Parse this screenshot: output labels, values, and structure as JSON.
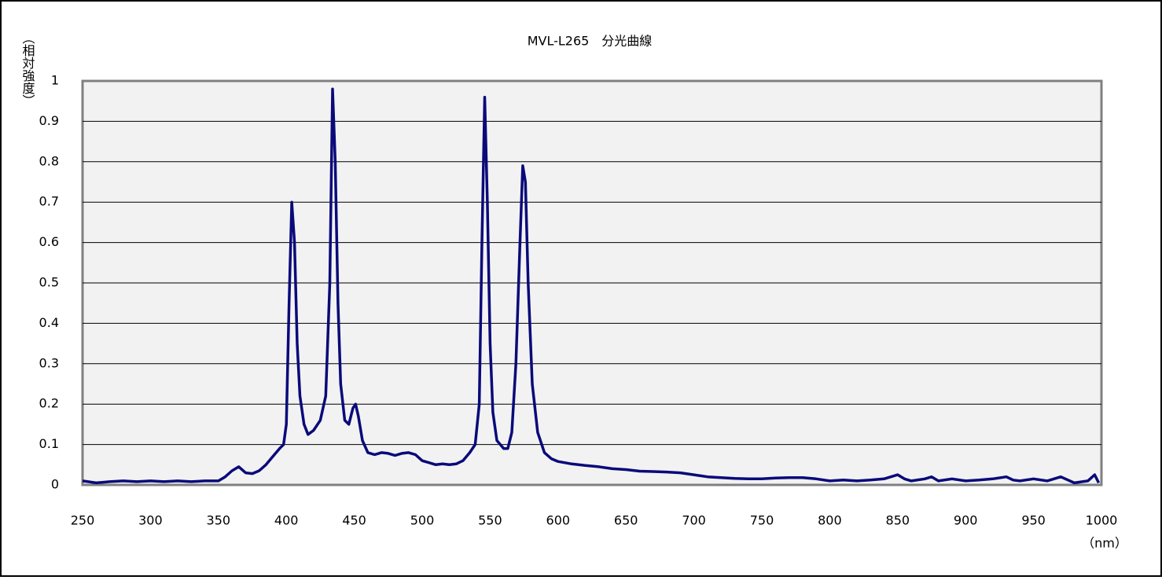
{
  "chart_data": {
    "type": "line",
    "title": "MVL-L265　分光曲線",
    "y_label": "（相対強度）",
    "x_label": "（nm）",
    "color": "#0a0a7a",
    "grid": true,
    "xlim": [
      250,
      1000
    ],
    "xticks": [
      250,
      300,
      350,
      400,
      450,
      500,
      550,
      600,
      650,
      700,
      750,
      800,
      850,
      900,
      950,
      1000
    ],
    "ylim": [
      0,
      1
    ],
    "yticks": [
      0,
      0.1,
      0.2,
      0.3,
      0.4,
      0.5,
      0.6,
      0.7,
      0.8,
      0.9,
      1
    ],
    "x": [
      250,
      260,
      270,
      280,
      290,
      300,
      310,
      320,
      330,
      340,
      350,
      355,
      360,
      365,
      370,
      375,
      380,
      385,
      390,
      395,
      398,
      400,
      402,
      404,
      406,
      408,
      410,
      413,
      416,
      420,
      425,
      429,
      432,
      434,
      436,
      438,
      440,
      443,
      446,
      449,
      451,
      453,
      456,
      460,
      465,
      470,
      475,
      480,
      485,
      490,
      495,
      500,
      505,
      510,
      515,
      520,
      525,
      530,
      535,
      539,
      542,
      544,
      546,
      548,
      550,
      552,
      555,
      560,
      563,
      566,
      569,
      572,
      574,
      576,
      578,
      581,
      585,
      590,
      595,
      600,
      610,
      620,
      630,
      640,
      650,
      660,
      670,
      680,
      690,
      700,
      710,
      720,
      730,
      740,
      750,
      760,
      770,
      780,
      790,
      800,
      810,
      820,
      830,
      840,
      850,
      855,
      860,
      870,
      875,
      880,
      890,
      900,
      910,
      920,
      930,
      935,
      940,
      950,
      960,
      970,
      980,
      990,
      995,
      998
    ],
    "values": [
      0.01,
      0.005,
      0.008,
      0.01,
      0.008,
      0.01,
      0.008,
      0.01,
      0.008,
      0.01,
      0.01,
      0.02,
      0.035,
      0.045,
      0.03,
      0.028,
      0.035,
      0.05,
      0.07,
      0.09,
      0.1,
      0.15,
      0.45,
      0.7,
      0.6,
      0.35,
      0.22,
      0.15,
      0.125,
      0.135,
      0.16,
      0.22,
      0.5,
      0.98,
      0.8,
      0.45,
      0.25,
      0.16,
      0.15,
      0.19,
      0.2,
      0.17,
      0.11,
      0.08,
      0.075,
      0.08,
      0.078,
      0.073,
      0.078,
      0.08,
      0.075,
      0.06,
      0.055,
      0.05,
      0.052,
      0.05,
      0.052,
      0.06,
      0.08,
      0.1,
      0.2,
      0.6,
      0.96,
      0.7,
      0.35,
      0.18,
      0.11,
      0.09,
      0.09,
      0.13,
      0.3,
      0.6,
      0.79,
      0.75,
      0.5,
      0.25,
      0.13,
      0.08,
      0.065,
      0.058,
      0.052,
      0.048,
      0.045,
      0.04,
      0.038,
      0.034,
      0.033,
      0.032,
      0.03,
      0.025,
      0.02,
      0.018,
      0.016,
      0.015,
      0.015,
      0.017,
      0.018,
      0.018,
      0.015,
      0.01,
      0.012,
      0.01,
      0.012,
      0.015,
      0.025,
      0.015,
      0.01,
      0.015,
      0.02,
      0.01,
      0.015,
      0.01,
      0.012,
      0.015,
      0.02,
      0.012,
      0.01,
      0.015,
      0.01,
      0.02,
      0.005,
      0.01,
      0.025,
      0.005
    ]
  }
}
